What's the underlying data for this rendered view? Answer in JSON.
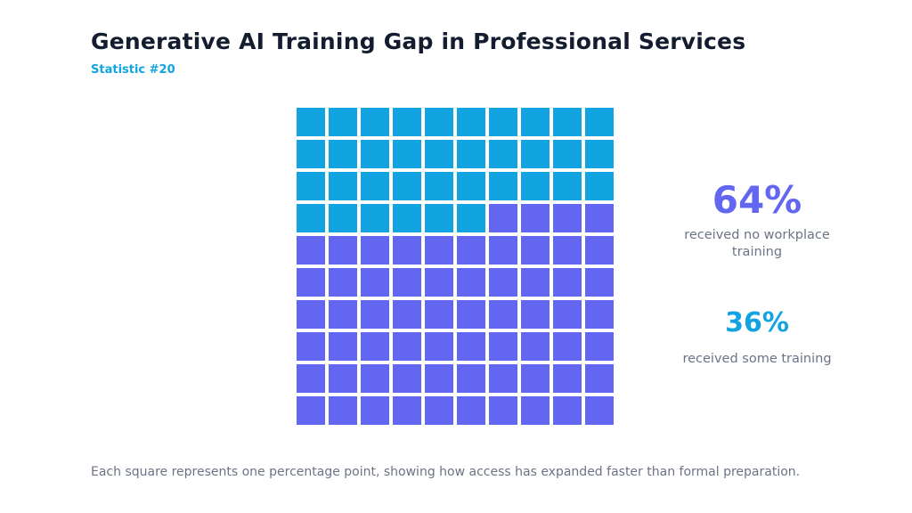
{
  "header": {
    "title": "Generative AI Training Gap in Professional Services",
    "subtitle": "Statistic #20"
  },
  "chart_data": {
    "type": "waffle",
    "title": "Generative AI Training Gap in Professional Services",
    "subtitle": "Statistic #20",
    "grid": [
      10,
      10
    ],
    "total": 100,
    "series": [
      {
        "name": "received some training",
        "value": 36,
        "color": "#12a3e1"
      },
      {
        "name": "received no workplace training",
        "value": 64,
        "color": "#6366f0"
      }
    ],
    "fill_order": "top-left, row by row",
    "annotations": [
      {
        "value_label": "64%",
        "label": "received no workplace training",
        "color": "#6366f0"
      },
      {
        "value_label": "36%",
        "label": "received some training",
        "color": "#12a3e1"
      }
    ]
  },
  "footnote": "Each square represents one percentage point, showing how access has expanded faster than formal preparation."
}
